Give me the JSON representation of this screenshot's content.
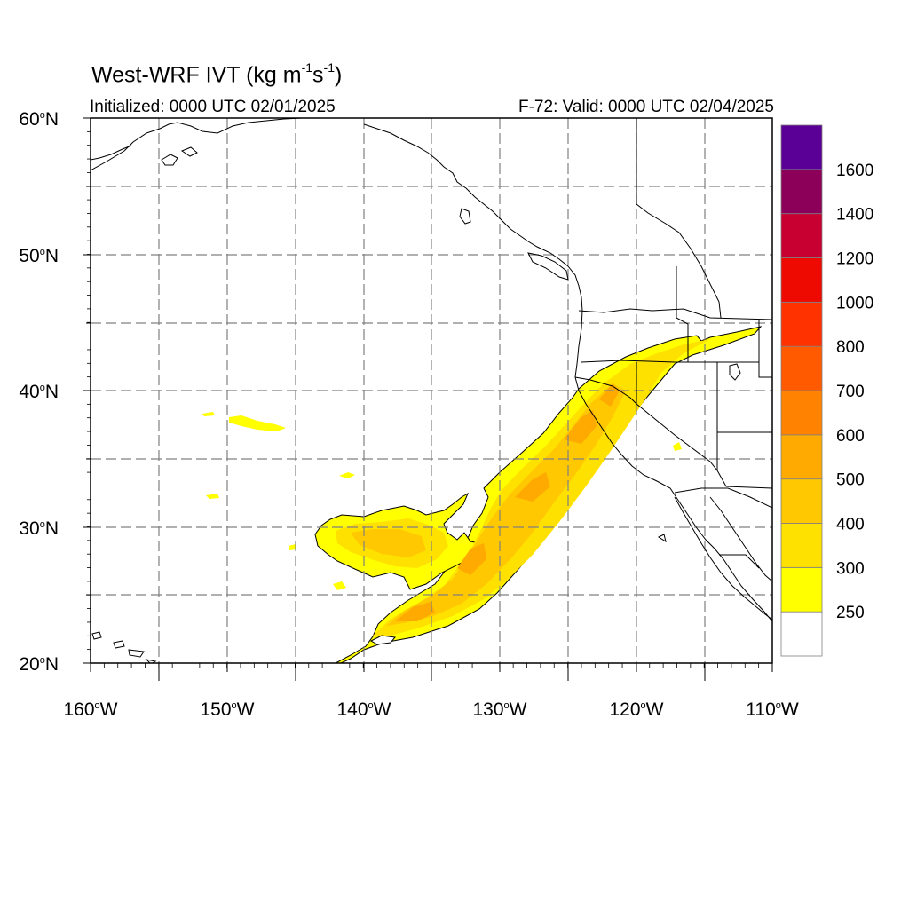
{
  "title": {
    "main": "West-WRF IVT (kg m",
    "exp1": "-1",
    "mid": "s",
    "exp2": "-1",
    "close": ")"
  },
  "init_text": "Initialized: 0000 UTC 02/01/2025",
  "valid_text": "F-72: Valid: 0000 UTC 02/04/2025",
  "map": {
    "lon_range": [
      -160,
      -110
    ],
    "lat_range": [
      20,
      60
    ],
    "lat_labels": [
      {
        "lat": 60,
        "text": "60",
        "suffix": "N"
      },
      {
        "lat": 50,
        "text": "50",
        "suffix": "N"
      },
      {
        "lat": 40,
        "text": "40",
        "suffix": "N"
      },
      {
        "lat": 30,
        "text": "30",
        "suffix": "N"
      },
      {
        "lat": 20,
        "text": "20",
        "suffix": "N"
      }
    ],
    "lon_labels": [
      {
        "lon": -160,
        "text": "160",
        "suffix": "W"
      },
      {
        "lon": -150,
        "text": "150",
        "suffix": "W"
      },
      {
        "lon": -140,
        "text": "140",
        "suffix": "W"
      },
      {
        "lon": -130,
        "text": "130",
        "suffix": "W"
      },
      {
        "lon": -120,
        "text": "120",
        "suffix": "W"
      },
      {
        "lon": -110,
        "text": "110",
        "suffix": "W"
      }
    ],
    "grid_dashed": true
  },
  "colorbar": {
    "levels": [
      {
        "label": "",
        "color": "#ffffff"
      },
      {
        "label": "250",
        "color": "#ffff00"
      },
      {
        "label": "300",
        "color": "#ffe100"
      },
      {
        "label": "400",
        "color": "#ffc800"
      },
      {
        "label": "500",
        "color": "#ffaa00"
      },
      {
        "label": "600",
        "color": "#ff8200"
      },
      {
        "label": "700",
        "color": "#ff5a00"
      },
      {
        "label": "800",
        "color": "#ff3200"
      },
      {
        "label": "1000",
        "color": "#ee0a00"
      },
      {
        "label": "1200",
        "color": "#c80032"
      },
      {
        "label": "1400",
        "color": "#8c005a"
      },
      {
        "label": "1600",
        "color": "#5a0096"
      }
    ]
  },
  "colors": {
    "ivt_250": "#ffff00",
    "ivt_300": "#ffe100",
    "ivt_400": "#ffc800",
    "ivt_500": "#ffaa00",
    "ivt_600": "#ff8200",
    "coastline": "#000000",
    "state_border": "#000000",
    "grid": "#808080"
  }
}
